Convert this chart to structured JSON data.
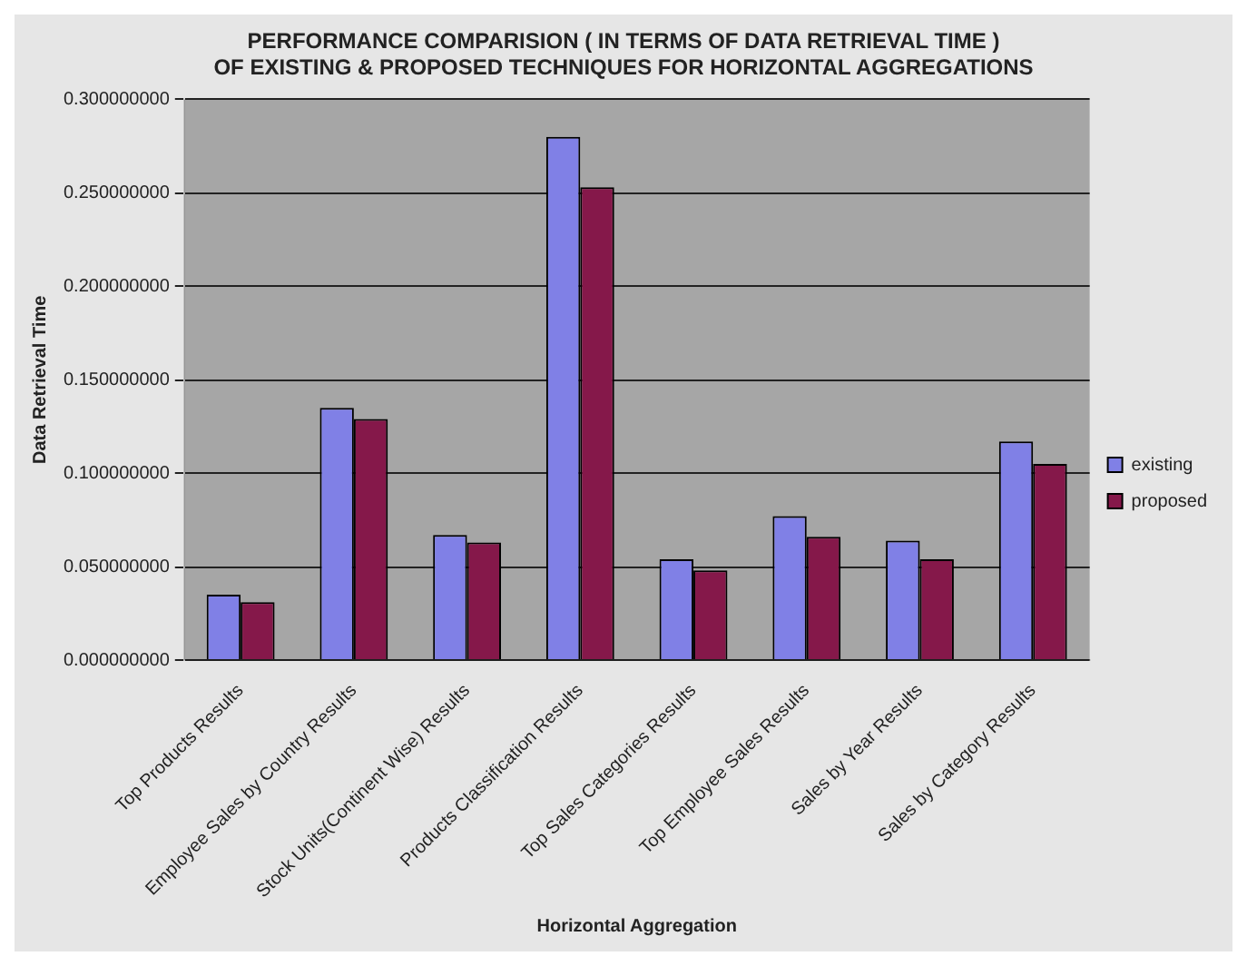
{
  "chart_data": {
    "type": "bar",
    "title": "PERFORMANCE COMPARISION ( IN TERMS OF DATA RETRIEVAL TIME ) OF EXISTING & PROPOSED TECHNIQUES FOR HORIZONTAL AGGREGATIONS",
    "xlabel": "Horizontal Aggregation",
    "ylabel": "Data Retrieval Time",
    "categories": [
      "Top Products Results",
      "Employee Sales by Country Results",
      "Stock Units(Continent Wise) Results",
      "Products Classification Results",
      "Top Sales Categories Results",
      "Top Employee Sales Results",
      "Sales by Year Results",
      "Sales by Category Results"
    ],
    "series": [
      {
        "name": "existing",
        "color": "#8080e6",
        "values": [
          0.035,
          0.135,
          0.067,
          0.28,
          0.054,
          0.077,
          0.064,
          0.117
        ]
      },
      {
        "name": "proposed",
        "color": "#85184a",
        "values": [
          0.031,
          0.129,
          0.063,
          0.253,
          0.048,
          0.066,
          0.054,
          0.105
        ]
      }
    ],
    "ylim": [
      0,
      0.3
    ],
    "yticks": [
      {
        "value": 0,
        "label": "0.000000000"
      },
      {
        "value": 0.05,
        "label": "0.050000000"
      },
      {
        "value": 0.1,
        "label": "0.100000000"
      },
      {
        "value": 0.15,
        "label": "0.150000000"
      },
      {
        "value": 0.2,
        "label": "0.200000000"
      },
      {
        "value": 0.25,
        "label": "0.250000000"
      },
      {
        "value": 0.3,
        "label": "0.300000000"
      }
    ],
    "grid": "y",
    "legend": "right"
  }
}
